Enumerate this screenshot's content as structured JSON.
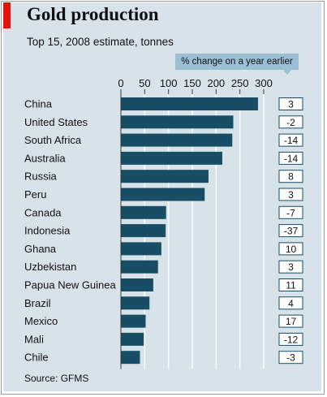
{
  "header": {
    "title": "Gold production",
    "subtitle": "Top 15, 2008 estimate, tonnes",
    "change_header": "% change on a year earlier"
  },
  "footer": {
    "source": "Source: GFMS"
  },
  "colors": {
    "bar": "#174e66",
    "background": "#d8e3e9",
    "accent": "#e3120b",
    "badge_fill": "#ffffff",
    "badge_border": "#174e66",
    "header_fill": "#9bc0d5",
    "gridline": "#ffffff"
  },
  "chart_data": {
    "type": "bar",
    "orientation": "horizontal",
    "categories": [
      "China",
      "United States",
      "South Africa",
      "Australia",
      "Russia",
      "Peru",
      "Canada",
      "Indonesia",
      "Ghana",
      "Uzbekistan",
      "Papua New Guinea",
      "Brazil",
      "Mexico",
      "Mali",
      "Chile"
    ],
    "values": [
      288,
      236,
      234,
      213,
      184,
      176,
      95,
      94,
      85,
      78,
      68,
      60,
      52,
      48,
      40
    ],
    "change_pct": [
      "3",
      "-2",
      "-14",
      "-14",
      "8",
      "3",
      "-7",
      "-37",
      "10",
      "3",
      "11",
      "4",
      "17",
      "-12",
      "-3"
    ],
    "xlim": [
      0,
      300
    ],
    "xticks": [
      0,
      50,
      100,
      150,
      200,
      250,
      300
    ],
    "grid": true,
    "tick_position": "top"
  }
}
